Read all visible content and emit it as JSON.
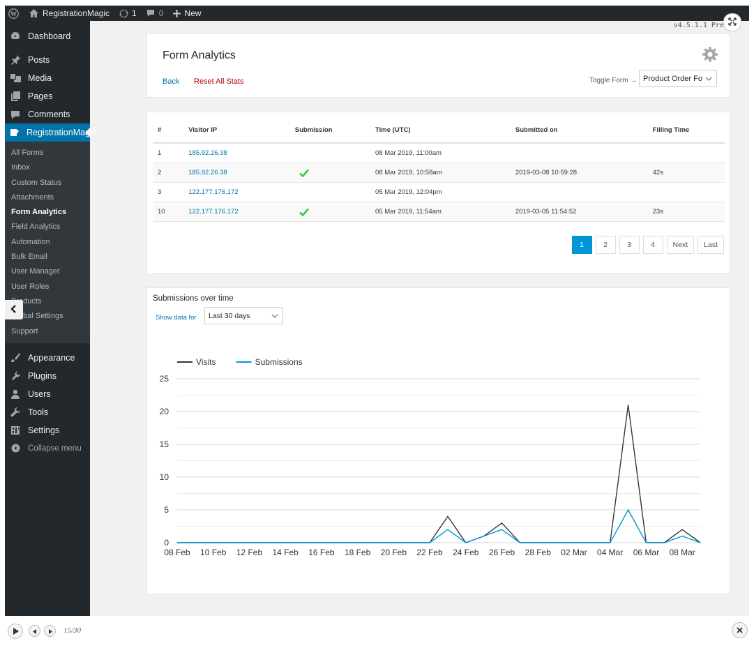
{
  "adminbar": {
    "site_name": "RegistrationMagic",
    "updates_count": "1",
    "comments_count": "0",
    "new_label": "New"
  },
  "sidebar": {
    "top_items": [
      {
        "label": "Dashboard",
        "icon": "dashboard-icon"
      },
      {
        "label": "Posts",
        "icon": "pin-icon"
      },
      {
        "label": "Media",
        "icon": "media-icon"
      },
      {
        "label": "Pages",
        "icon": "pages-icon"
      },
      {
        "label": "Comments",
        "icon": "comments-icon"
      },
      {
        "label": "RegistrationMagic",
        "icon": "registrationmagic-icon",
        "active": true
      }
    ],
    "submenu": [
      "All Forms",
      "Inbox",
      "Custom Status",
      "Attachments",
      "Form Analytics",
      "Field Analytics",
      "Automation",
      "Bulk Email",
      "User Manager",
      "User Roles",
      "Products",
      "Global Settings",
      "Support"
    ],
    "submenu_current": "Form Analytics",
    "bottom_items": [
      {
        "label": "Appearance",
        "icon": "brush-icon"
      },
      {
        "label": "Plugins",
        "icon": "plugin-icon"
      },
      {
        "label": "Users",
        "icon": "users-icon"
      },
      {
        "label": "Tools",
        "icon": "wrench-icon"
      },
      {
        "label": "Settings",
        "icon": "settings-icon"
      }
    ],
    "collapse_label": "Collapse menu"
  },
  "version": "v4.5.1.1 Premium",
  "header": {
    "title": "Form Analytics",
    "back_label": "Back",
    "reset_label": "Reset All Stats",
    "toggle_label": "Toggle Form →",
    "selected_form": "Product Order Fo"
  },
  "table": {
    "columns": [
      "#",
      "Visitor IP",
      "Submission",
      "Time (UTC)",
      "Submitted on",
      "Filling Time"
    ],
    "rows": [
      {
        "num": "1",
        "ip": "185.92.26.38",
        "submitted": false,
        "time": "08 Mar 2019, 11:00am",
        "submitted_on": "",
        "filling": ""
      },
      {
        "num": "2",
        "ip": "185.92.26.38",
        "submitted": true,
        "time": "08 Mar 2019, 10:58am",
        "submitted_on": "2019-03-08 10:59:28",
        "filling": "42s"
      },
      {
        "num": "3",
        "ip": "122.177.176.172",
        "submitted": false,
        "time": "05 Mar 2019, 12:04pm",
        "submitted_on": "",
        "filling": ""
      },
      {
        "num": "10",
        "ip": "122.177.176.172",
        "submitted": true,
        "time": "05 Mar 2019, 11:54am",
        "submitted_on": "2019-03-05 11:54:52",
        "filling": "23s"
      }
    ]
  },
  "pagination": {
    "pages": [
      "1",
      "2",
      "3",
      "4"
    ],
    "current": "1",
    "next_label": "Next",
    "last_label": "Last"
  },
  "chart_section": {
    "title": "Submissions over time",
    "show_label": "Show data for",
    "range_selected": "Last 30 days"
  },
  "chart_data": {
    "type": "line",
    "title": "",
    "xlabel": "",
    "ylabel": "",
    "legend_position": "top-left",
    "ylim": [
      0,
      25
    ],
    "yticks": [
      0,
      5,
      10,
      15,
      20,
      25
    ],
    "x": [
      "08 Feb",
      "09 Feb",
      "10 Feb",
      "11 Feb",
      "12 Feb",
      "13 Feb",
      "14 Feb",
      "15 Feb",
      "16 Feb",
      "17 Feb",
      "18 Feb",
      "19 Feb",
      "20 Feb",
      "21 Feb",
      "22 Feb",
      "23 Feb",
      "24 Feb",
      "25 Feb",
      "26 Feb",
      "27 Feb",
      "28 Feb",
      "01 Mar",
      "02 Mar",
      "03 Mar",
      "04 Mar",
      "05 Mar",
      "06 Mar",
      "07 Mar",
      "08 Mar",
      "09 Mar"
    ],
    "xtick_labels": [
      "08 Feb",
      "10 Feb",
      "12 Feb",
      "14 Feb",
      "16 Feb",
      "18 Feb",
      "20 Feb",
      "22 Feb",
      "24 Feb",
      "26 Feb",
      "28 Feb",
      "02 Mar",
      "04 Mar",
      "06 Mar",
      "08 Mar"
    ],
    "series": [
      {
        "name": "Visits",
        "color": "#32373c",
        "values": [
          0,
          0,
          0,
          0,
          0,
          0,
          0,
          0,
          0,
          0,
          0,
          0,
          0,
          0,
          0,
          4,
          0,
          1,
          3,
          0,
          0,
          0,
          0,
          0,
          0,
          21,
          0,
          0,
          2,
          0
        ]
      },
      {
        "name": "Submissions",
        "color": "#0096d6",
        "values": [
          0,
          0,
          0,
          0,
          0,
          0,
          0,
          0,
          0,
          0,
          0,
          0,
          0,
          0,
          0,
          2,
          0,
          1,
          2,
          0,
          0,
          0,
          0,
          0,
          0,
          5,
          0,
          0,
          1,
          0
        ]
      }
    ]
  },
  "player": {
    "counter": "15/30"
  }
}
